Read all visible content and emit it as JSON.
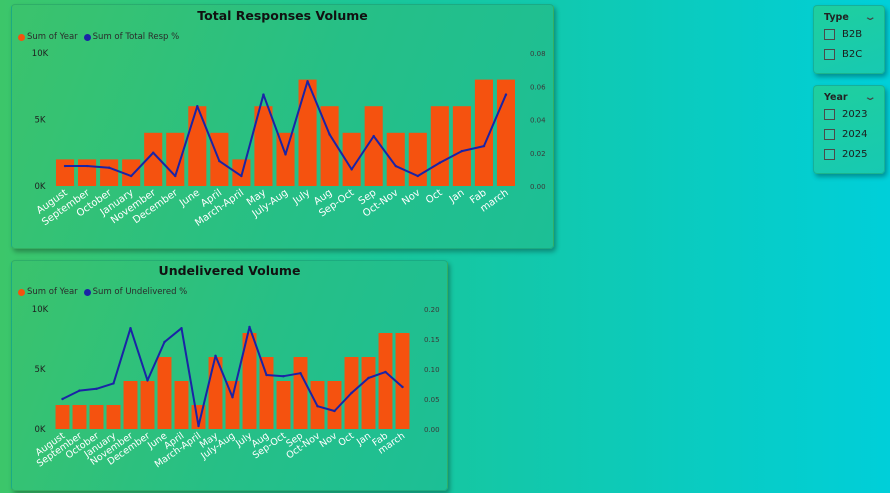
{
  "charts": {
    "top": {
      "title": "Total Responses Volume",
      "legend": [
        {
          "label": "Sum of Year",
          "color": "#f5520f"
        },
        {
          "label": "Sum of Total Resp %",
          "color": "#1a24a6"
        }
      ]
    },
    "bottom": {
      "title": "Undelivered Volume",
      "legend": [
        {
          "label": "Sum of Year",
          "color": "#f5520f"
        },
        {
          "label": "Sum of Undelivered %",
          "color": "#1a24a6"
        }
      ]
    }
  },
  "slicers": {
    "type": {
      "title": "Type",
      "options": [
        "B2B",
        "B2C"
      ]
    },
    "year": {
      "title": "Year",
      "options": [
        "2023",
        "2024",
        "2025"
      ]
    }
  },
  "chart_data": [
    {
      "type": "bar",
      "title": "Total Responses Volume",
      "categories": [
        "August",
        "September",
        "October",
        "January",
        "November",
        "December",
        "June",
        "April",
        "March-April",
        "May",
        "July-Aug",
        "July",
        "Aug",
        "Sep-Oct",
        "Sep",
        "Oct-Nov",
        "Nov",
        "Oct",
        "Jan",
        "Fab",
        "march"
      ],
      "series": [
        {
          "name": "Sum of Year",
          "type": "bar",
          "axis": "left",
          "values": [
            2000,
            2000,
            2000,
            2000,
            4000,
            4000,
            6000,
            4000,
            2000,
            6000,
            4000,
            8000,
            6000,
            4000,
            6000,
            4000,
            4000,
            6000,
            6000,
            8000,
            8000
          ]
        },
        {
          "name": "Sum of Total Resp %",
          "type": "line",
          "axis": "right",
          "values": [
            0.012,
            0.012,
            0.011,
            0.006,
            0.02,
            0.006,
            0.048,
            0.015,
            0.006,
            0.055,
            0.019,
            0.063,
            0.031,
            0.01,
            0.03,
            0.012,
            0.006,
            0.014,
            0.021,
            0.024,
            0.055
          ]
        }
      ],
      "y_left": {
        "ticks": [
          "0K",
          "5K",
          "10K"
        ],
        "range": [
          0,
          10000
        ]
      },
      "y_right": {
        "ticks": [
          "0.00",
          "0.02",
          "0.04",
          "0.06",
          "0.08"
        ],
        "range": [
          0,
          0.08
        ]
      },
      "legend": "top-left",
      "grid": false
    },
    {
      "type": "bar",
      "title": "Undelivered Volume",
      "categories": [
        "August",
        "September",
        "October",
        "January",
        "November",
        "December",
        "June",
        "April",
        "March-April",
        "May",
        "July-Aug",
        "July",
        "Aug",
        "Sep-Oct",
        "Sep",
        "Oct-Nov",
        "Nov",
        "Oct",
        "Jan",
        "Fab",
        "march"
      ],
      "series": [
        {
          "name": "Sum of Year",
          "type": "bar",
          "axis": "left",
          "values": [
            2000,
            2000,
            2000,
            2000,
            4000,
            4000,
            6000,
            4000,
            2000,
            6000,
            4000,
            8000,
            6000,
            4000,
            6000,
            4000,
            4000,
            6000,
            6000,
            8000,
            8000
          ]
        },
        {
          "name": "Sum of Undelivered %",
          "type": "line",
          "axis": "right",
          "values": [
            0.05,
            0.064,
            0.067,
            0.076,
            0.168,
            0.081,
            0.145,
            0.168,
            0.005,
            0.122,
            0.053,
            0.17,
            0.09,
            0.088,
            0.093,
            0.038,
            0.03,
            0.06,
            0.085,
            0.095,
            0.07
          ]
        }
      ],
      "y_left": {
        "ticks": [
          "0K",
          "5K",
          "10K"
        ],
        "range": [
          0,
          10000
        ]
      },
      "y_right": {
        "ticks": [
          "0.00",
          "0.05",
          "0.10",
          "0.15",
          "0.20"
        ],
        "range": [
          0,
          0.2
        ]
      },
      "legend": "top-left",
      "grid": false
    }
  ]
}
